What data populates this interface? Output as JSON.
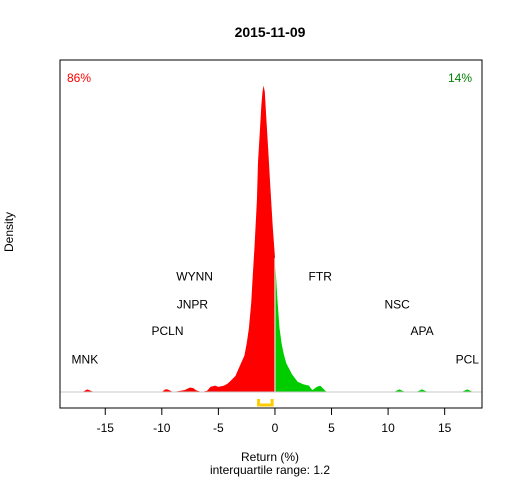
{
  "chart_data": {
    "type": "area",
    "title": "2015-11-09",
    "xlabel": "Return (%)",
    "subtitle": "interquartile range: 1.2",
    "ylabel": "Density",
    "xlim": [
      -19,
      18.3
    ],
    "ylim": [
      0,
      0.52
    ],
    "xticks": [
      -15,
      -10,
      -5,
      0,
      5,
      10,
      15
    ],
    "split_x": 0,
    "colors": {
      "negative": "#ff0000",
      "positive": "#00cc00",
      "iqr": "#ffcc00",
      "baseline": "#c8c8c8"
    },
    "share_negative": "86%",
    "share_positive": "14%",
    "iqr_bracket": [
      -1.45,
      -0.25
    ],
    "density": {
      "x": [
        -18,
        -17,
        -16.6,
        -16,
        -12,
        -10,
        -9.7,
        -9.5,
        -9,
        -8,
        -7.5,
        -7.2,
        -7,
        -6.5,
        -6,
        -5.7,
        -5.3,
        -5,
        -4.5,
        -4.2,
        -4,
        -3.5,
        -3,
        -2.7,
        -2.5,
        -2.3,
        -2.1,
        -2,
        -1.8,
        -1.6,
        -1.5,
        -1.3,
        -1.2,
        -1.1,
        -1,
        -0.9,
        -0.8,
        -0.6,
        -0.4,
        -0.2,
        0,
        0.2,
        0.4,
        0.6,
        0.8,
        1,
        1.5,
        2,
        2.5,
        3,
        3.3,
        3.7,
        4,
        4.5,
        5,
        6,
        9,
        10.5,
        11,
        11.5,
        12.5,
        13,
        13.5,
        16.5,
        17,
        17.5,
        18
      ],
      "y": [
        0,
        0,
        0.004,
        0,
        0,
        0,
        0.004,
        0.004,
        0,
        0.003,
        0.007,
        0.006,
        0.003,
        0,
        0.002,
        0.008,
        0.01,
        0.008,
        0.01,
        0.013,
        0.016,
        0.025,
        0.045,
        0.057,
        0.076,
        0.1,
        0.139,
        0.17,
        0.23,
        0.3,
        0.36,
        0.42,
        0.45,
        0.47,
        0.48,
        0.47,
        0.44,
        0.38,
        0.32,
        0.26,
        0.21,
        0.15,
        0.1,
        0.075,
        0.058,
        0.045,
        0.028,
        0.016,
        0.012,
        0.01,
        0.003,
        0.008,
        0.01,
        0.001,
        0,
        0,
        0,
        0,
        0.004,
        0,
        0,
        0.004,
        0,
        0,
        0.004,
        0,
        0
      ]
    },
    "annotations": [
      {
        "text": "MNK",
        "x": -16.8,
        "y": 0.045
      },
      {
        "text": "PCLN",
        "x": -9.5,
        "y": 0.089
      },
      {
        "text": "JNPR",
        "x": -7.3,
        "y": 0.131
      },
      {
        "text": "WYNN",
        "x": -7.1,
        "y": 0.175
      },
      {
        "text": "FTR",
        "x": 4.0,
        "y": 0.175
      },
      {
        "text": "NSC",
        "x": 10.8,
        "y": 0.131
      },
      {
        "text": "APA",
        "x": 13.0,
        "y": 0.089
      },
      {
        "text": "PCL",
        "x": 17.0,
        "y": 0.045
      }
    ]
  }
}
